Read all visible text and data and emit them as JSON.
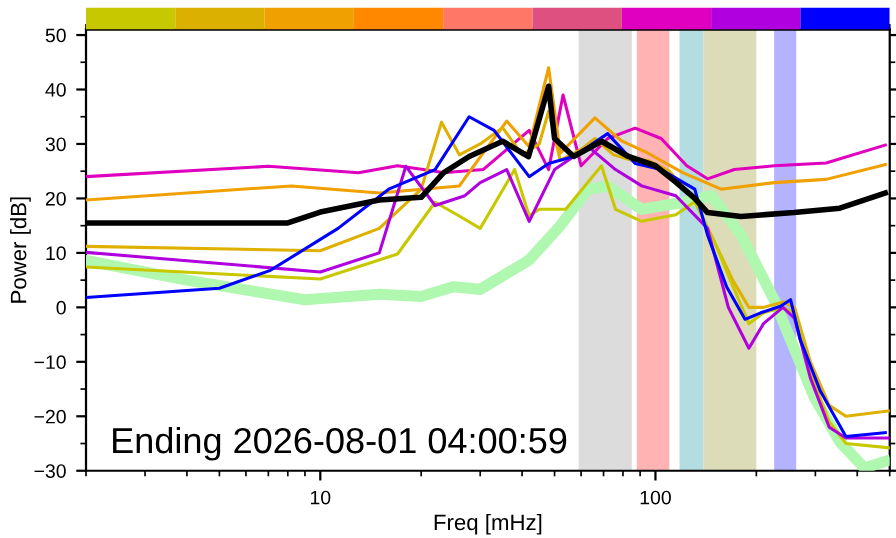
{
  "chart_data": {
    "type": "line",
    "xlabel": "Freq [mHz]",
    "ylabel": "Power [dB]",
    "log": "x",
    "xlim": [
      2,
      500
    ],
    "xticks": [
      10,
      100
    ],
    "ylim": [
      -30,
      51
    ],
    "yticks": [
      -30,
      -20,
      -10,
      0,
      10,
      20,
      30,
      40,
      50
    ],
    "grid": false,
    "legend": false,
    "marker": "none",
    "line_style": "solid",
    "annotations": [
      "Ending 2026-08-01 04:00:59"
    ],
    "bands": [
      {
        "axis": "x",
        "from": 59,
        "to": 85,
        "color": "#dcdcdc"
      },
      {
        "axis": "x",
        "from": 88,
        "to": 110,
        "color": "#ffb3b3"
      },
      {
        "axis": "x",
        "from": 118,
        "to": 139,
        "color": "#b3dde0"
      },
      {
        "axis": "x",
        "from": 139,
        "to": 200,
        "color": "#dcdcb8"
      },
      {
        "axis": "x",
        "from": 226,
        "to": 263,
        "color": "#b3b3ff"
      }
    ],
    "series": [
      {
        "color": "#b0f8b0",
        "x": [
          2,
          4,
          9,
          15,
          20,
          25,
          30,
          42,
          52,
          63,
          72,
          91,
          124,
          147,
          180,
          226,
          297,
          355,
          420,
          485
        ],
        "values": [
          8.6,
          5,
          1.4,
          2.4,
          2,
          3.8,
          3.3,
          8.7,
          15,
          21.7,
          22.3,
          18,
          19.4,
          20.5,
          13.3,
          1.4,
          -16.4,
          -24.7,
          -29.5,
          -28.3
        ]
      },
      {
        "color": "#e000c0",
        "x": [
          2,
          7,
          13,
          17,
          22,
          23.3,
          30.6,
          42,
          48,
          53,
          60,
          72,
          87,
          104,
          124,
          143,
          172,
          226,
          323,
          485
        ],
        "values": [
          24,
          25.9,
          24.7,
          26,
          25,
          24.7,
          25.3,
          32.5,
          25.3,
          39,
          26,
          31,
          32.9,
          31,
          26,
          23.6,
          25.3,
          26,
          26.5,
          29.8
        ]
      },
      {
        "color": "#f0a000",
        "x": [
          2,
          8.2,
          15,
          26,
          30.6,
          36,
          42,
          48,
          52,
          66,
          79,
          95,
          121,
          157,
          226,
          323,
          485
        ],
        "values": [
          19.7,
          22.3,
          21,
          22.3,
          28.3,
          34.2,
          29.5,
          44,
          28.3,
          34.8,
          30.6,
          28.3,
          24.7,
          21.7,
          22.9,
          23.5,
          26.2
        ]
      },
      {
        "color": "#e0b000",
        "x": [
          2,
          10,
          15,
          20,
          23,
          26,
          30,
          35,
          40,
          45,
          48,
          52,
          60,
          66,
          75,
          85,
          95,
          110,
          130,
          150,
          170,
          190,
          210,
          240,
          260,
          290,
          330,
          370,
          500
        ],
        "values": [
          11.2,
          10.4,
          14.5,
          21.7,
          34,
          28,
          30,
          33,
          28,
          30,
          36,
          27,
          29,
          31,
          28,
          27,
          27,
          25,
          20,
          12,
          5,
          0,
          0,
          1,
          0,
          -10,
          -18,
          -20,
          -19
        ]
      },
      {
        "color": "#c8c800",
        "x": [
          2,
          10,
          17,
          22,
          25.6,
          30,
          38,
          42,
          45,
          54,
          69,
          76,
          91,
          115,
          131,
          150,
          170,
          190,
          210,
          240,
          260,
          290,
          330,
          370,
          500
        ],
        "values": [
          7.4,
          5.2,
          9.8,
          19.3,
          17,
          14.5,
          25.3,
          16.8,
          18,
          18,
          26,
          18,
          15.8,
          17,
          19.4,
          12,
          4,
          -3,
          -1,
          0,
          -1,
          -12,
          -21,
          -25,
          -25.8
        ]
      },
      {
        "color": "#b000e0",
        "x": [
          2,
          10,
          15,
          18,
          22,
          27,
          30,
          36,
          42,
          50,
          63,
          76,
          91,
          115,
          143,
          165,
          190,
          210,
          240,
          260,
          290,
          330,
          370,
          500
        ],
        "values": [
          10.1,
          6.5,
          10,
          25.9,
          18.7,
          20.5,
          22.9,
          25.3,
          15.8,
          25.3,
          29.5,
          25.3,
          22.3,
          20.5,
          14.5,
          0,
          -7.5,
          -3,
          0,
          -2,
          -13,
          -22,
          -24,
          -24
        ]
      },
      {
        "color": "#0000ff",
        "x": [
          2,
          5,
          7.1,
          11.3,
          16,
          22,
          27.8,
          33,
          42,
          48,
          57,
          72,
          87,
          104,
          131,
          143,
          163,
          185,
          206,
          236,
          253,
          270,
          310,
          370,
          485
        ],
        "values": [
          1.8,
          3.5,
          6.8,
          14.5,
          21.7,
          25.3,
          35,
          32.5,
          24,
          26.4,
          27.7,
          31.9,
          26.4,
          25.3,
          21.7,
          13.3,
          3.8,
          -2.2,
          -1,
          0.2,
          1.4,
          -5.8,
          -15.3,
          -23.7,
          -23
        ]
      },
      {
        "color": "#000000",
        "x": [
          2,
          8,
          10,
          15,
          20,
          23.3,
          27.8,
          35,
          41.8,
          48,
          50,
          57,
          69,
          83,
          100,
          115,
          131,
          143,
          180,
          259,
          355,
          485
        ],
        "values": [
          15.5,
          15.5,
          17.5,
          19.7,
          20.2,
          24.7,
          27.7,
          30.5,
          27.7,
          40.6,
          31,
          27.7,
          30.5,
          27.7,
          26,
          23,
          20,
          17.4,
          16.7,
          17.4,
          18.2,
          21
        ]
      }
    ]
  }
}
